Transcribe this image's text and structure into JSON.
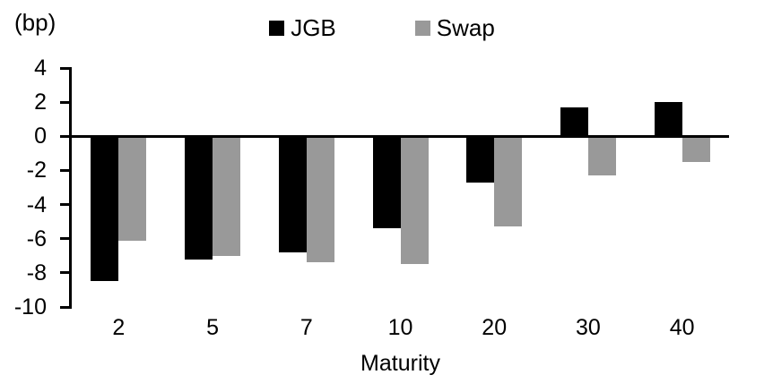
{
  "chart_data": {
    "type": "bar",
    "title": "",
    "unit_label": "(bp)",
    "xlabel": "Maturity",
    "ylabel": "",
    "categories": [
      "2",
      "5",
      "7",
      "10",
      "20",
      "30",
      "40"
    ],
    "series": [
      {
        "name": "JGB",
        "color": "#000000",
        "values": [
          -8.5,
          -7.2,
          -6.8,
          -5.4,
          -2.7,
          1.7,
          2.0
        ]
      },
      {
        "name": "Swap",
        "color": "#999999",
        "values": [
          -6.1,
          -7.0,
          -7.4,
          -7.5,
          -5.3,
          -2.3,
          -1.5
        ]
      }
    ],
    "ylim": [
      -10,
      4
    ],
    "yticks": [
      4,
      2,
      0,
      -2,
      -4,
      -6,
      -8,
      -10
    ],
    "grid": false,
    "legend_position": "top-center",
    "baseline": 0
  }
}
